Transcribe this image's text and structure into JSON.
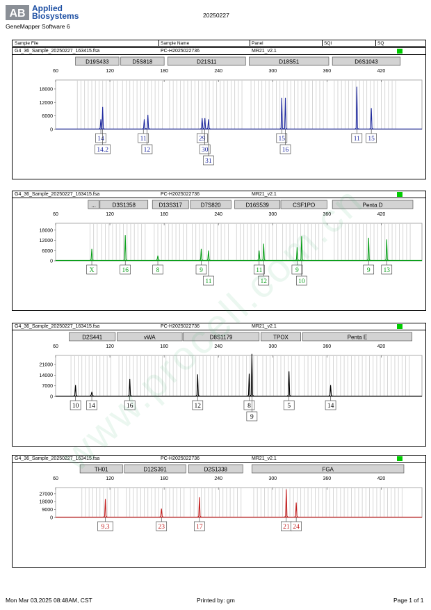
{
  "brand": {
    "logo_text": "AB",
    "line1": "Applied",
    "line2": "Biosystems"
  },
  "software": "GeneMapper Software 6",
  "run_date": "20250227",
  "header": [
    "Sample File",
    "Sample Name",
    "Panel",
    "SQI",
    "SQ"
  ],
  "sample": {
    "file": "G4_36_Sample_20250227_163415.fsa",
    "name": "PC-H2025022736",
    "panel": "MR21_v2.1"
  },
  "quality_color": "#00cc00",
  "x_ticks": [
    60,
    120,
    180,
    240,
    300,
    360,
    420
  ],
  "x_range": [
    60,
    465
  ],
  "watermark": "www.procell.com.cn",
  "panels": [
    {
      "dye_color": "#1f2a9e",
      "y_ticks": [
        0,
        6000,
        12000,
        18000
      ],
      "y_max": 22000,
      "markers": [
        {
          "name": "D19S433",
          "start": 82,
          "end": 130
        },
        {
          "name": "D5S818",
          "start": 132,
          "end": 180
        },
        {
          "name": "D21S11",
          "start": 184,
          "end": 270
        },
        {
          "name": "D18S51",
          "start": 274,
          "end": 362
        },
        {
          "name": "D6S1043",
          "start": 366,
          "end": 441
        }
      ],
      "peaks": [
        {
          "x": 110,
          "y": 4500
        },
        {
          "x": 112,
          "y": 10000
        },
        {
          "x": 158,
          "y": 4500
        },
        {
          "x": 162,
          "y": 6500
        },
        {
          "x": 222,
          "y": 5000
        },
        {
          "x": 225,
          "y": 5000
        },
        {
          "x": 229,
          "y": 4500
        },
        {
          "x": 310,
          "y": 14000
        },
        {
          "x": 314,
          "y": 14000
        },
        {
          "x": 393,
          "y": 19000
        },
        {
          "x": 409,
          "y": 9500
        }
      ],
      "alleles": [
        {
          "x": 110,
          "row": 0,
          "label": "14"
        },
        {
          "x": 112,
          "row": 1,
          "label": "14.2"
        },
        {
          "x": 157,
          "row": 0,
          "label": "11"
        },
        {
          "x": 161,
          "row": 1,
          "label": "12"
        },
        {
          "x": 222,
          "row": 0,
          "label": "29"
        },
        {
          "x": 225,
          "row": 1,
          "label": "30"
        },
        {
          "x": 229,
          "row": 2,
          "label": "31"
        },
        {
          "x": 310,
          "row": 0,
          "label": "15"
        },
        {
          "x": 314,
          "row": 1,
          "label": "16"
        },
        {
          "x": 393,
          "row": 0,
          "label": "11"
        },
        {
          "x": 409,
          "row": 0,
          "label": "15"
        }
      ]
    },
    {
      "dye_color": "#0a9e1a",
      "y_ticks": [
        0,
        6000,
        12000,
        18000
      ],
      "y_max": 22000,
      "markers": [
        {
          "name": "...",
          "start": 96,
          "end": 108
        },
        {
          "name": "D3S1358",
          "start": 109,
          "end": 162
        },
        {
          "name": "D13S317",
          "start": 167,
          "end": 207
        },
        {
          "name": "D7S820",
          "start": 209,
          "end": 254
        },
        {
          "name": "D16S539",
          "start": 258,
          "end": 308
        },
        {
          "name": "CSF1PO",
          "start": 309,
          "end": 360
        },
        {
          "name": "Penta D",
          "start": 366,
          "end": 455
        }
      ],
      "peaks": [
        {
          "x": 100,
          "y": 7000
        },
        {
          "x": 137,
          "y": 15000
        },
        {
          "x": 173,
          "y": 3000
        },
        {
          "x": 221,
          "y": 7000
        },
        {
          "x": 229,
          "y": 6000
        },
        {
          "x": 285,
          "y": 6000
        },
        {
          "x": 290,
          "y": 10000
        },
        {
          "x": 327,
          "y": 8000
        },
        {
          "x": 332,
          "y": 14500
        },
        {
          "x": 406,
          "y": 13500
        },
        {
          "x": 426,
          "y": 12500
        }
      ],
      "alleles": [
        {
          "x": 100,
          "row": 0,
          "label": "X"
        },
        {
          "x": 137,
          "row": 0,
          "label": "16"
        },
        {
          "x": 173,
          "row": 0,
          "label": "8"
        },
        {
          "x": 221,
          "row": 0,
          "label": "9"
        },
        {
          "x": 229,
          "row": 1,
          "label": "11"
        },
        {
          "x": 285,
          "row": 0,
          "label": "11"
        },
        {
          "x": 290,
          "row": 1,
          "label": "12"
        },
        {
          "x": 327,
          "row": 0,
          "label": "9"
        },
        {
          "x": 332,
          "row": 1,
          "label": "10"
        },
        {
          "x": 406,
          "row": 0,
          "label": "9"
        },
        {
          "x": 426,
          "row": 0,
          "label": "13"
        }
      ]
    },
    {
      "dye_color": "#000000",
      "y_ticks": [
        0,
        7000,
        14000,
        21000
      ],
      "y_max": 27000,
      "markers": [
        {
          "name": "D2S441",
          "start": 75,
          "end": 126
        },
        {
          "name": "vWA",
          "start": 128,
          "end": 200
        },
        {
          "name": "D8S1179",
          "start": 201,
          "end": 285
        },
        {
          "name": "TPOX",
          "start": 287,
          "end": 331
        },
        {
          "name": "Penta E",
          "start": 333,
          "end": 454
        }
      ],
      "peaks": [
        {
          "x": 82,
          "y": 7500
        },
        {
          "x": 100,
          "y": 3000
        },
        {
          "x": 142,
          "y": 11500
        },
        {
          "x": 217,
          "y": 14500
        },
        {
          "x": 274,
          "y": 15000
        },
        {
          "x": 277,
          "y": 28000
        },
        {
          "x": 318,
          "y": 16500
        },
        {
          "x": 364,
          "y": 7500
        }
      ],
      "alleles": [
        {
          "x": 82,
          "row": 0,
          "label": "10"
        },
        {
          "x": 100,
          "row": 0,
          "label": "14"
        },
        {
          "x": 142,
          "row": 0,
          "label": "16"
        },
        {
          "x": 217,
          "row": 0,
          "label": "12"
        },
        {
          "x": 274,
          "row": 0,
          "label": "8"
        },
        {
          "x": 277,
          "row": 1,
          "label": "9"
        },
        {
          "x": 318,
          "row": 0,
          "label": "5"
        },
        {
          "x": 364,
          "row": 0,
          "label": "14"
        }
      ]
    },
    {
      "dye_color": "#c21e1e",
      "y_ticks": [
        0,
        9000,
        18000,
        27000
      ],
      "y_max": 34000,
      "markers": [
        {
          "name": "TH01",
          "start": 87,
          "end": 134
        },
        {
          "name": "D12S391",
          "start": 136,
          "end": 204
        },
        {
          "name": "D2S1338",
          "start": 207,
          "end": 267
        },
        {
          "name": "FGA",
          "start": 277,
          "end": 445
        }
      ],
      "peaks": [
        {
          "x": 115,
          "y": 21000
        },
        {
          "x": 177,
          "y": 10000
        },
        {
          "x": 219,
          "y": 23000
        },
        {
          "x": 315,
          "y": 32000
        },
        {
          "x": 326,
          "y": 17000
        }
      ],
      "alleles": [
        {
          "x": 115,
          "row": 0,
          "label": "9.3"
        },
        {
          "x": 177,
          "row": 0,
          "label": "23"
        },
        {
          "x": 219,
          "row": 0,
          "label": "17"
        },
        {
          "x": 315,
          "row": 0,
          "label": "21"
        },
        {
          "x": 326,
          "row": 0,
          "label": "24"
        }
      ]
    }
  ],
  "footer": {
    "date": "Mon Mar 03,2025 08:48AM, CST",
    "printed_by": "Printed by: gm",
    "page": "Page 1 of 1"
  }
}
